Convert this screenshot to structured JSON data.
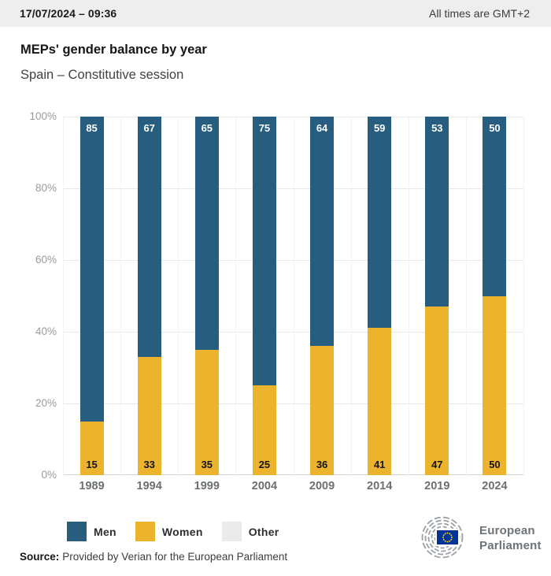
{
  "header": {
    "datetime": "17/07/2024 – 09:36",
    "timezone_note": "All times are GMT+2"
  },
  "title": "MEPs' gender balance by year",
  "subtitle": "Spain – Constitutive session",
  "chart_data": {
    "type": "bar",
    "stacked": true,
    "title": "MEPs' gender balance by year",
    "subtitle": "Spain – Constitutive session",
    "categories": [
      "1989",
      "1994",
      "1999",
      "2004",
      "2009",
      "2014",
      "2019",
      "2024"
    ],
    "series": [
      {
        "name": "Men",
        "color": "#275d7e",
        "values": [
          85,
          67,
          65,
          75,
          64,
          59,
          53,
          50
        ]
      },
      {
        "name": "Women",
        "color": "#ecb32c",
        "values": [
          15,
          33,
          35,
          25,
          36,
          41,
          47,
          50
        ]
      }
    ],
    "legend": [
      {
        "label": "Men",
        "color": "#275d7e"
      },
      {
        "label": "Women",
        "color": "#ecb32c"
      },
      {
        "label": "Other",
        "color": "#ebebeb"
      }
    ],
    "ylim": [
      0,
      100
    ],
    "yticks_percent": [
      0,
      20,
      40,
      60,
      80,
      100
    ],
    "ytick_suffix": "%",
    "grid": true,
    "legend_position": "bottom-left",
    "value_labels": "inside"
  },
  "source": {
    "label": "Source:",
    "text": "Provided by Verian for the European Parliament"
  },
  "logo": {
    "line1": "European",
    "line2": "Parliament"
  },
  "colors": {
    "men": "#275d7e",
    "women": "#ecb32c",
    "other": "#ebebeb",
    "topbar_bg": "#eeeeee",
    "grid": "#e8e8e8",
    "flag_blue": "#003399",
    "flag_star": "#ffcc00",
    "logo_gray": "#9aa0a5"
  }
}
